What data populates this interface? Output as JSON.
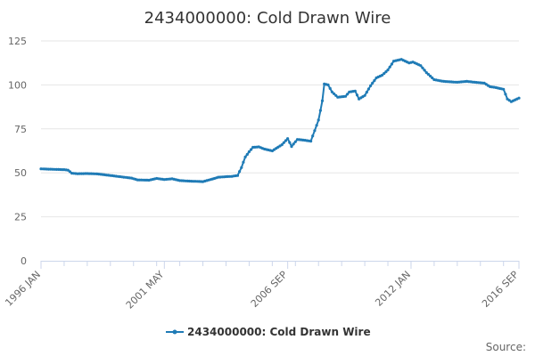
{
  "chart_data": {
    "type": "line",
    "title": "2434000000: Cold Drawn Wire",
    "xlabel": "",
    "ylabel": "",
    "ylim": [
      0,
      125
    ],
    "y_ticks": [
      "0",
      "25",
      "50",
      "75",
      "100",
      "125"
    ],
    "x_tick_labels": [
      "1996 JAN",
      "2001 MAY",
      "2006 SEP",
      "2012 JAN",
      "2016 SEP"
    ],
    "x_start": "1996-01",
    "x_end": "2016-09",
    "grid": "horizontal",
    "legend_position": "bottom-center",
    "series": [
      {
        "name": "2434000000: Cold Drawn Wire",
        "color": "#1f7bb6",
        "points": [
          [
            "1996-01",
            52.3
          ],
          [
            "1996-07",
            52.0
          ],
          [
            "1997-01",
            51.8
          ],
          [
            "1997-03",
            51.5
          ],
          [
            "1997-05",
            49.8
          ],
          [
            "1997-08",
            49.5
          ],
          [
            "1998-01",
            49.6
          ],
          [
            "1998-06",
            49.4
          ],
          [
            "1999-01",
            48.5
          ],
          [
            "1999-06",
            47.8
          ],
          [
            "1999-12",
            47.0
          ],
          [
            "2000-03",
            46.0
          ],
          [
            "2000-09",
            45.8
          ],
          [
            "2001-01",
            46.8
          ],
          [
            "2001-05",
            46.2
          ],
          [
            "2001-09",
            46.6
          ],
          [
            "2002-01",
            45.6
          ],
          [
            "2002-06",
            45.3
          ],
          [
            "2003-01",
            45.0
          ],
          [
            "2003-06",
            46.5
          ],
          [
            "2003-09",
            47.5
          ],
          [
            "2004-01",
            47.8
          ],
          [
            "2004-04",
            48.0
          ],
          [
            "2004-07",
            48.5
          ],
          [
            "2004-09",
            53.0
          ],
          [
            "2004-11",
            59.0
          ],
          [
            "2005-01",
            62.0
          ],
          [
            "2005-03",
            64.5
          ],
          [
            "2005-06",
            64.8
          ],
          [
            "2005-09",
            63.5
          ],
          [
            "2006-01",
            62.5
          ],
          [
            "2006-06",
            66.0
          ],
          [
            "2006-09",
            69.5
          ],
          [
            "2006-11",
            65.0
          ],
          [
            "2007-02",
            69.0
          ],
          [
            "2007-06",
            68.5
          ],
          [
            "2007-09",
            68.0
          ],
          [
            "2008-01",
            80.0
          ],
          [
            "2008-03",
            91.0
          ],
          [
            "2008-04",
            100.5
          ],
          [
            "2008-06",
            100.0
          ],
          [
            "2008-08",
            96.0
          ],
          [
            "2008-11",
            93.0
          ],
          [
            "2009-03",
            93.5
          ],
          [
            "2009-05",
            96.0
          ],
          [
            "2009-08",
            96.5
          ],
          [
            "2009-10",
            92.0
          ],
          [
            "2010-01",
            94.0
          ],
          [
            "2010-04",
            99.5
          ],
          [
            "2010-07",
            104.0
          ],
          [
            "2010-10",
            105.5
          ],
          [
            "2011-01",
            108.5
          ],
          [
            "2011-04",
            113.5
          ],
          [
            "2011-08",
            114.5
          ],
          [
            "2011-12",
            112.5
          ],
          [
            "2012-02",
            113.0
          ],
          [
            "2012-06",
            111.0
          ],
          [
            "2012-09",
            107.0
          ],
          [
            "2013-01",
            103.0
          ],
          [
            "2013-06",
            102.0
          ],
          [
            "2014-01",
            101.5
          ],
          [
            "2014-06",
            102.0
          ],
          [
            "2014-10",
            101.5
          ],
          [
            "2015-03",
            101.0
          ],
          [
            "2015-06",
            99.0
          ],
          [
            "2015-09",
            98.5
          ],
          [
            "2016-01",
            97.5
          ],
          [
            "2016-03",
            92.0
          ],
          [
            "2016-05",
            90.5
          ],
          [
            "2016-07",
            91.5
          ],
          [
            "2016-09",
            92.5
          ]
        ]
      }
    ],
    "credits": "Source:"
  }
}
